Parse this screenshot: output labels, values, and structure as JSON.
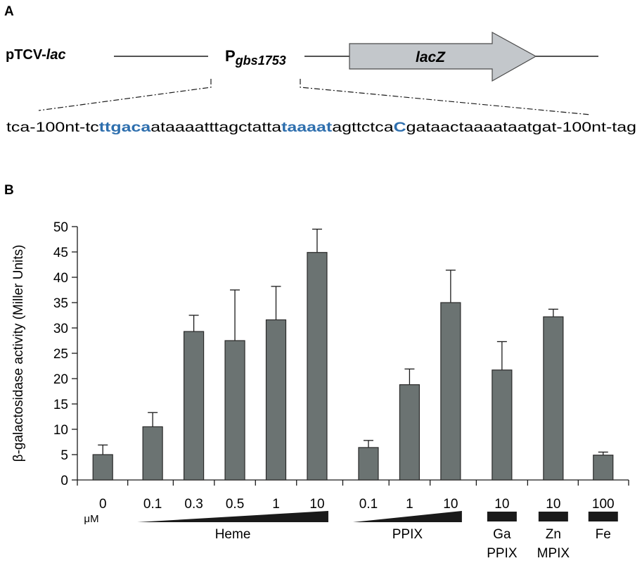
{
  "panel_a": {
    "label": "A",
    "plasmid_prefix": "pTCV-",
    "plasmid_gene": "lac",
    "promoter_p": "P",
    "promoter_sub": "gbs1753",
    "gene_label": "lacZ",
    "sequence": [
      {
        "text": "tca-100nt-tc",
        "highlight": false
      },
      {
        "text": "ttgaca",
        "highlight": true
      },
      {
        "text": "ataaaatttagctatta",
        "highlight": false
      },
      {
        "text": "taaaat",
        "highlight": true
      },
      {
        "text": "agttctca",
        "highlight": false
      },
      {
        "text": "C",
        "highlight": true
      },
      {
        "text": "gataactaaaataatgat-100nt-tag",
        "highlight": false
      }
    ]
  },
  "panel_b": {
    "label": "B",
    "unit_label": "μM"
  },
  "colors": {
    "bar": "#6b7372",
    "highlight": "#2e6fae",
    "arrow": "#c3c7cb",
    "wedge": "#1a1a1a"
  },
  "chart_data": {
    "type": "bar",
    "ylabel": "β-galactosidase activity (Miller Units)",
    "ylim": [
      0,
      50
    ],
    "yticks": [
      0,
      5,
      10,
      15,
      20,
      25,
      30,
      35,
      40,
      45,
      50
    ],
    "categories": [
      "0",
      "0.1",
      "0.3",
      "0.5",
      "1",
      "10",
      "0.1",
      "1",
      "10",
      "10",
      "10",
      "100"
    ],
    "values": [
      5,
      10.5,
      29.3,
      27.5,
      31.6,
      44.9,
      6.4,
      18.8,
      35,
      21.7,
      32.2,
      4.9
    ],
    "errors": [
      1.9,
      2.8,
      3.2,
      10,
      6.6,
      4.6,
      1.4,
      3.1,
      6.4,
      5.6,
      1.5,
      0.6
    ],
    "groups": [
      {
        "label": "Heme",
        "type": "gradient"
      },
      {
        "label": "PPIX",
        "type": "gradient"
      },
      {
        "label": "Ga",
        "label2": "PPIX",
        "type": "block"
      },
      {
        "label": "Zn",
        "label2": "MPIX",
        "type": "block"
      },
      {
        "label": "Fe",
        "type": "block"
      }
    ]
  }
}
